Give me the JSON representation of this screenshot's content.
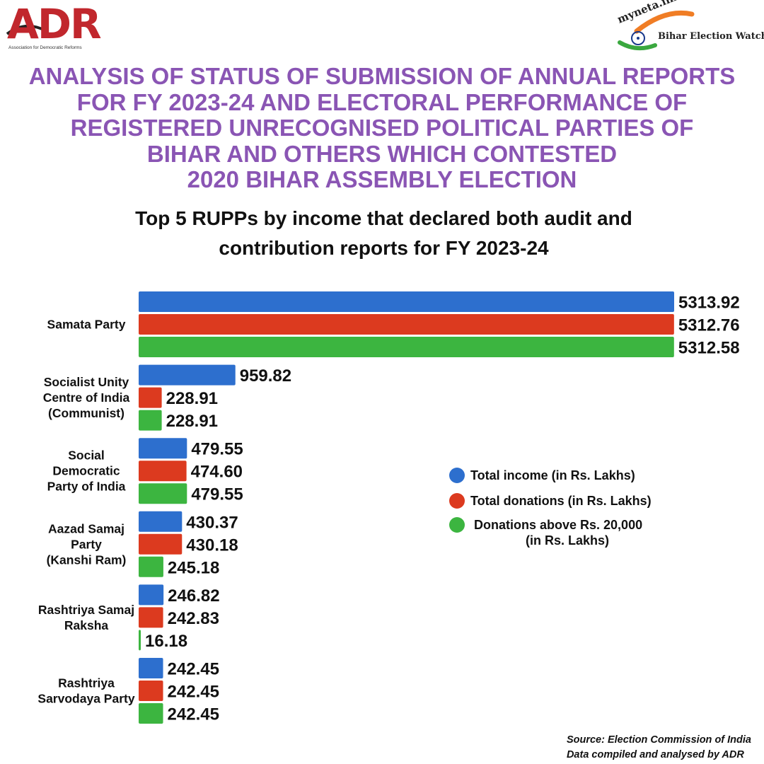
{
  "header": {
    "adr_logo": {
      "name": "ADR",
      "subtitle": "Association for Democratic Reforms"
    },
    "myneta_logo": {
      "name": "myneta.info",
      "tagline": "Bihar Election Watch"
    }
  },
  "title_lines": [
    "ANALYSIS OF STATUS OF SUBMISSION OF ANNUAL REPORTS",
    "FOR FY 2023-24 AND ELECTORAL PERFORMANCE OF",
    "REGISTERED UNRECOGNISED POLITICAL PARTIES OF",
    "BIHAR AND OTHERS WHICH CONTESTED",
    "2020 BIHAR ASSEMBLY ELECTION"
  ],
  "colors": {
    "title": "#8a55b4",
    "income": "#2d6fce",
    "donations": "#dc3a1f",
    "donations_above": "#3cb540",
    "adr_red": "#c1272d"
  },
  "chart_data": {
    "type": "bar",
    "orientation": "horizontal",
    "title": "Top 5 RUPPs by income that declared both audit and contribution reports for FY 2023-24",
    "title_lines": [
      "Top 5 RUPPs by income that declared both audit and",
      "contribution reports for FY 2023-24"
    ],
    "xlabel": "",
    "ylabel": "",
    "xlim": [
      0,
      5313.92
    ],
    "grid": false,
    "legend_position": "right",
    "categories": [
      [
        "Samata Party"
      ],
      [
        "Socialist Unity",
        "Centre of India",
        "(Communist)"
      ],
      [
        "Social",
        "Democratic",
        "Party of India"
      ],
      [
        "Aazad Samaj",
        "Party",
        "(Kanshi Ram)"
      ],
      [
        "Rashtriya Samaj",
        "Raksha"
      ],
      [
        "Rashtriya",
        "Sarvodaya Party"
      ]
    ],
    "series": [
      {
        "name": "Total income (in Rs. Lakhs)",
        "legend_lines": [
          "Total income (in Rs. Lakhs)"
        ],
        "color": "#2d6fce",
        "values": [
          5313.92,
          959.82,
          479.55,
          430.37,
          246.82,
          242.45
        ],
        "labels": [
          "5313.92",
          "959.82",
          "479.55",
          "430.37",
          "246.82",
          "242.45"
        ]
      },
      {
        "name": "Total donations (in Rs. Lakhs)",
        "legend_lines": [
          "Total donations (in Rs. Lakhs)"
        ],
        "color": "#dc3a1f",
        "values": [
          5312.76,
          228.91,
          474.6,
          430.18,
          242.83,
          242.45
        ],
        "labels": [
          "5312.76",
          "228.91",
          "474.60",
          "430.18",
          "242.83",
          "242.45"
        ]
      },
      {
        "name": "Donations above Rs. 20,000 (in Rs. Lakhs)",
        "legend_lines": [
          "Donations above Rs. 20,000",
          "(in Rs. Lakhs)"
        ],
        "color": "#3cb540",
        "values": [
          5312.58,
          228.91,
          479.55,
          245.18,
          16.18,
          242.45
        ],
        "labels": [
          "5312.58",
          "228.91",
          "479.55",
          "245.18",
          "16.18",
          "242.45"
        ]
      }
    ]
  },
  "source": {
    "line1": "Source: Election Commission of India",
    "line2": "Data compiled and analysed by ADR"
  }
}
